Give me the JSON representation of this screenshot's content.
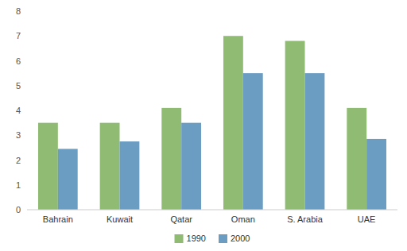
{
  "chart_data": {
    "type": "bar",
    "categories": [
      "Bahrain",
      "Kuwait",
      "Qatar",
      "Oman",
      "S. Arabia",
      "UAE"
    ],
    "series": [
      {
        "name": "1990",
        "color": "#8FBC72",
        "values": [
          3.5,
          3.5,
          4.1,
          7.0,
          6.8,
          4.1
        ]
      },
      {
        "name": "2000",
        "color": "#6B9DC2",
        "values": [
          2.45,
          2.75,
          3.5,
          5.5,
          5.5,
          2.85
        ]
      }
    ],
    "ylim": [
      0,
      8
    ],
    "yticks": [
      0,
      1,
      2,
      3,
      4,
      5,
      6,
      7,
      8
    ],
    "grid": false,
    "legend": "bottom"
  }
}
